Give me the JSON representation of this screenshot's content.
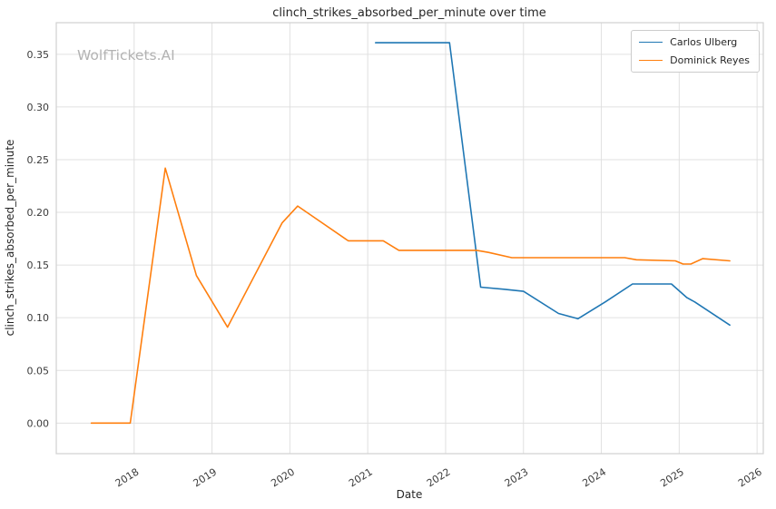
{
  "watermark": "WolfTickets.AI",
  "chart_data": {
    "type": "line",
    "title": "clinch_strikes_absorbed_per_minute over time",
    "xlabel": "Date",
    "ylabel": "clinch_strikes_absorbed_per_minute",
    "xlim": [
      2017.0,
      2026.08
    ],
    "ylim": [
      -0.029,
      0.38
    ],
    "xticks": [
      2018,
      2019,
      2020,
      2021,
      2022,
      2023,
      2024,
      2025,
      2026
    ],
    "yticks": [
      0.0,
      0.05,
      0.1,
      0.15,
      0.2,
      0.25,
      0.3,
      0.35
    ],
    "grid": true,
    "legend_position": "upper right",
    "grid_color": "#e0e0e0",
    "spine_color": "#d0d0d0",
    "series": [
      {
        "name": "Carlos Ulberg",
        "color": "#1f77b4",
        "points": [
          [
            2021.1,
            0.361
          ],
          [
            2022.05,
            0.361
          ],
          [
            2022.45,
            0.129
          ],
          [
            2022.75,
            0.127
          ],
          [
            2023.0,
            0.125
          ],
          [
            2023.45,
            0.104
          ],
          [
            2023.7,
            0.099
          ],
          [
            2024.05,
            0.115
          ],
          [
            2024.4,
            0.132
          ],
          [
            2024.9,
            0.132
          ],
          [
            2025.1,
            0.119
          ],
          [
            2025.2,
            0.115
          ],
          [
            2025.65,
            0.093
          ]
        ]
      },
      {
        "name": "Dominick Reyes",
        "color": "#ff7f0e",
        "points": [
          [
            2017.45,
            0.0
          ],
          [
            2017.95,
            0.0
          ],
          [
            2018.4,
            0.242
          ],
          [
            2018.8,
            0.14
          ],
          [
            2019.2,
            0.091
          ],
          [
            2019.9,
            0.19
          ],
          [
            2020.1,
            0.206
          ],
          [
            2020.75,
            0.173
          ],
          [
            2021.2,
            0.173
          ],
          [
            2021.4,
            0.164
          ],
          [
            2022.4,
            0.164
          ],
          [
            2022.55,
            0.162
          ],
          [
            2022.85,
            0.157
          ],
          [
            2024.3,
            0.157
          ],
          [
            2024.45,
            0.155
          ],
          [
            2024.95,
            0.154
          ],
          [
            2025.05,
            0.151
          ],
          [
            2025.15,
            0.151
          ],
          [
            2025.3,
            0.156
          ],
          [
            2025.65,
            0.154
          ]
        ]
      }
    ]
  }
}
